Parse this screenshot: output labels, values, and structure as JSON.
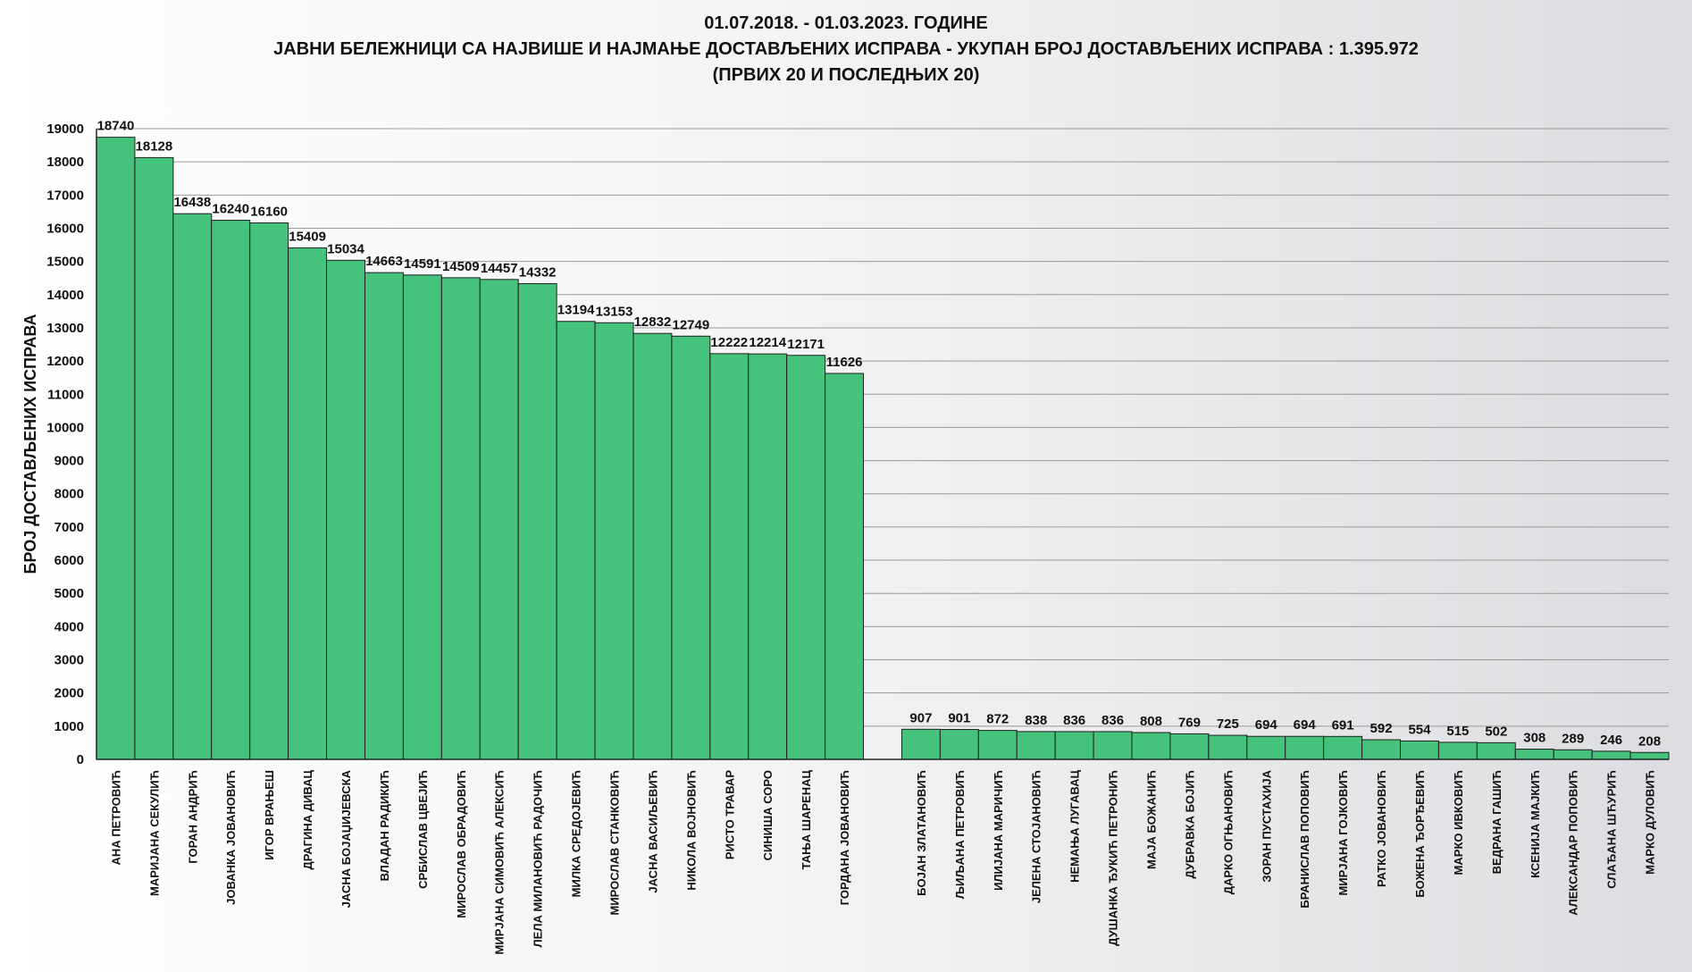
{
  "chart_data": {
    "type": "bar",
    "title": "01.07.2018.  - 01.03.2023.  ГОДИНЕ",
    "subtitle": "ЈАВНИ БЕЛЕЖНИЦИ СА НАЈВИШЕ И НАЈМАЊЕ ДОСТАВЉЕНИХ ИСПРАВА - УКУПАН БРОЈ ДОСТАВЉЕНИХ ИСПРАВА : 1.395.972",
    "subtitle2": "(ПРВИХ 20 И ПОСЛЕДЊИХ 20)",
    "xlabel": "",
    "ylabel": "БРОЈ ДОСТАВЉЕНИХ ИСПРАВА",
    "ylim": [
      0,
      19000
    ],
    "ytick_step": 1000,
    "grid": true,
    "bar_color": "#45c27c",
    "categories": [
      "АНА ПЕТРОВИЋ",
      "МАРИЈАНА СЕКУЛИЋ",
      "ГОРАН АНДРИЋ",
      "ЈОВАНКА ЈОВАНОВИЋ",
      "ИГОР ВРАЊЕШ",
      "ДРАГИНА ДИВАЦ",
      "ЈАСНА БОЈАЏИЈЕВСКА",
      "ВЛАДАН РАДИКИЋ",
      "СРБИСЛАВ ЦВЕЈИЋ",
      "МИРОСЛАВ ОБРАДОВИЋ",
      "МИРЈАНА СИМОВИЋ  АЛЕКСИЋ",
      "ЛЕЛА МИЛАНОВИЋ  РАДОЧИЋ",
      "МИЛКА СРЕДОЈЕВИЋ",
      "МИРОСЛАВ СТАНКОВИЋ",
      "ЈАСНА ВАСИЉЕВИЋ",
      "НИКОЛА ВОЈНОВИЋ",
      "РИСТО ТРАВАР",
      "СИНИША СОРО",
      "ТАЊА ШАРЕНАЦ",
      "ГОРДАНА ЈОВАНОВИЋ",
      "",
      "БОЈАН ЗЛАТАНОВИЋ",
      "ЉИЉАНА ПЕТРОВИЋ",
      "ИЛИЈАНА МАРИЧИЋ",
      "ЈЕЛЕНА СТОЈАНОВИЋ",
      "НЕМАЊА ЛУГАВАЦ",
      "ДУШАНКА ЂУКИЋ ПЕТРОНИЋ",
      "МАЈА БОЖАНИЋ",
      "ДУБРАВКА БОЈИЋ",
      "ДАРКО ОГЊАНОВИЋ",
      "ЗОРАН ПУСТАХИЈА",
      "БРАНИСЛАВ ПОПОВИЋ",
      "МИРЈАНА ГОЈКОВИЋ",
      "РАТКО ЈОВАНОВИЋ",
      "БОЖЕНА ЂОРЂЕВИЋ",
      "МАРКО ИВКОВИЋ",
      "ВЕДРАНА ГАШИЋ",
      "КСЕНИЈА МАЈКИЋ",
      "АЛЕКСАНДАР ПОПОВИЋ",
      "СЛАЂАНА ШЋУРИЋ",
      "МАРКО ДУЛОВИЋ"
    ],
    "values": [
      18740,
      18128,
      16438,
      16240,
      16160,
      15409,
      15034,
      14663,
      14591,
      14509,
      14457,
      14332,
      13194,
      13153,
      12832,
      12749,
      12222,
      12214,
      12171,
      11626,
      null,
      907,
      901,
      872,
      838,
      836,
      836,
      808,
      769,
      725,
      694,
      694,
      691,
      592,
      554,
      515,
      502,
      308,
      289,
      246,
      208
    ]
  }
}
